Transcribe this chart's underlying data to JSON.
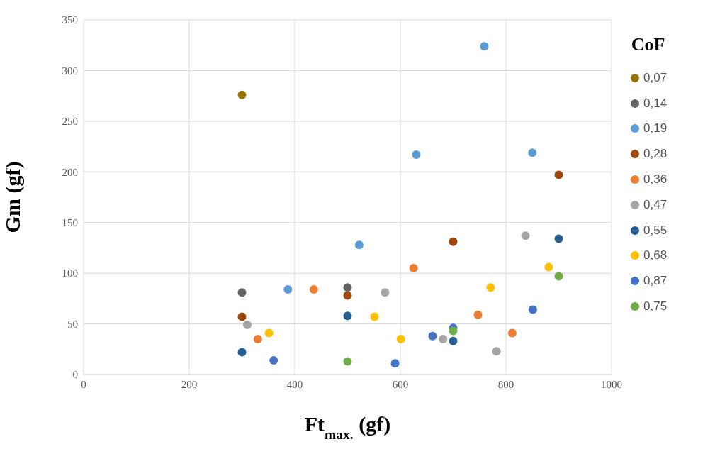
{
  "chart_data": {
    "type": "scatter",
    "xlabel": "Ft$_{max.}$ (gf)",
    "ylabel": "Gm (gf)",
    "legend_title": "CoF",
    "xlim": [
      0,
      1000
    ],
    "xticks": [
      0,
      200,
      400,
      600,
      800,
      1000
    ],
    "ylim": [
      0,
      350
    ],
    "yticks": [
      0,
      50,
      100,
      150,
      200,
      250,
      300,
      350
    ],
    "grid": true,
    "legend": "right",
    "marker": "circle",
    "series": [
      {
        "name": "0,07",
        "color": "#997300",
        "x": [
          300
        ],
        "values": [
          276
        ]
      },
      {
        "name": "0,14",
        "color": "#636363",
        "x": [
          300,
          500
        ],
        "values": [
          81,
          86
        ]
      },
      {
        "name": "0,19",
        "color": "#5b9bd5",
        "x": [
          387,
          522,
          630,
          759,
          850
        ],
        "values": [
          84,
          128,
          217,
          324,
          219
        ]
      },
      {
        "name": "0,28",
        "color": "#9e480e",
        "x": [
          300,
          500,
          700,
          900
        ],
        "values": [
          57,
          78,
          131,
          197
        ]
      },
      {
        "name": "0,36",
        "color": "#ed7d31",
        "x": [
          330,
          436,
          625,
          747,
          812
        ],
        "values": [
          35,
          84,
          105,
          59,
          41
        ]
      },
      {
        "name": "0,47",
        "color": "#a5a5a5",
        "x": [
          310,
          571,
          681,
          782,
          837
        ],
        "values": [
          49,
          81,
          35,
          23,
          137
        ]
      },
      {
        "name": "0,55",
        "color": "#255e91",
        "x": [
          300,
          500,
          700,
          900
        ],
        "values": [
          22,
          58,
          33,
          134
        ]
      },
      {
        "name": "0,68",
        "color": "#ffc000",
        "x": [
          351,
          551,
          601,
          771,
          881
        ],
        "values": [
          41,
          57,
          35,
          86,
          106
        ]
      },
      {
        "name": "0,87",
        "color": "#4472c4",
        "x": [
          360,
          590,
          661,
          700,
          851
        ],
        "values": [
          14,
          11,
          38,
          46,
          64
        ]
      },
      {
        "name": "0,75",
        "color": "#70ad47",
        "x": [
          500,
          700,
          900
        ],
        "values": [
          13,
          43,
          97
        ]
      }
    ]
  }
}
